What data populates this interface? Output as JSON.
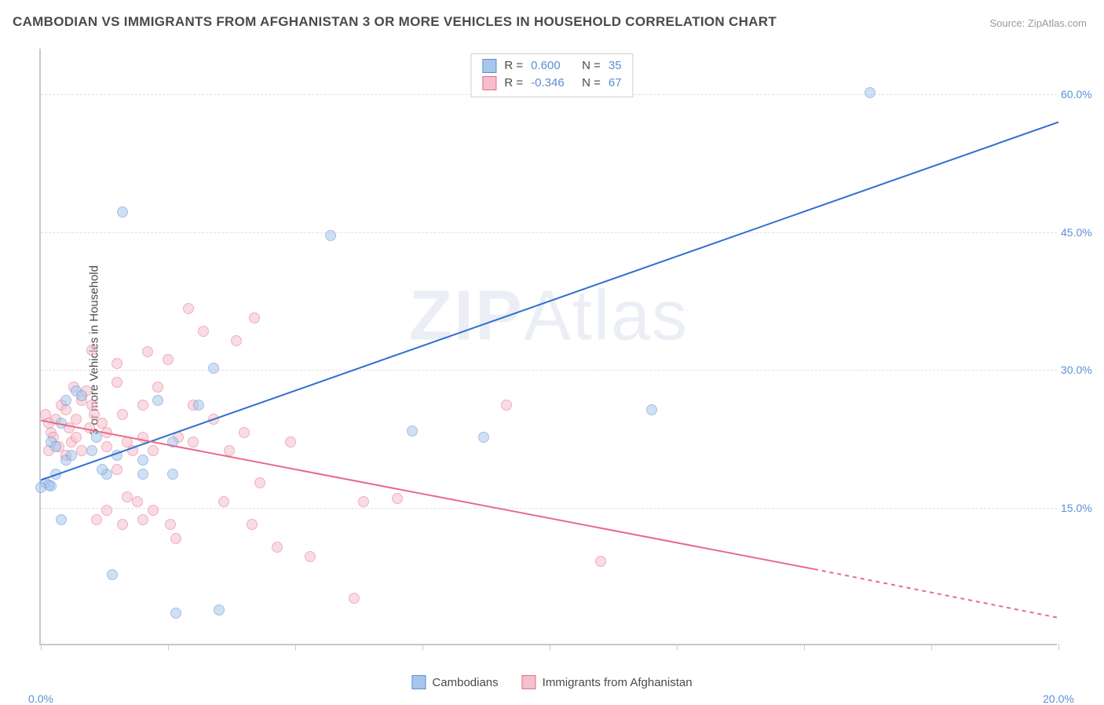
{
  "title": "CAMBODIAN VS IMMIGRANTS FROM AFGHANISTAN 3 OR MORE VEHICLES IN HOUSEHOLD CORRELATION CHART",
  "source": "Source: ZipAtlas.com",
  "ylabel": "3 or more Vehicles in Household",
  "watermark_a": "ZIP",
  "watermark_b": "Atlas",
  "chart": {
    "type": "scatter",
    "xlim": [
      0,
      20
    ],
    "ylim": [
      0,
      65
    ],
    "xticks": [
      0,
      2.5,
      5,
      7.5,
      10,
      12.5,
      15,
      17.5,
      20
    ],
    "xtick_labels": {
      "0": "0.0%",
      "20": "20.0%"
    },
    "yticks": [
      15,
      30,
      45,
      60
    ],
    "ytick_labels": [
      "15.0%",
      "30.0%",
      "45.0%",
      "60.0%"
    ],
    "grid_color": "#e0e0e0",
    "axis_color": "#c8c8c8",
    "background_color": "#ffffff",
    "marker_radius": 7,
    "marker_opacity": 0.55,
    "series": [
      {
        "name": "Cambodians",
        "color_fill": "#a8c6ec",
        "color_stroke": "#5b8fd6",
        "r_label": "R =",
        "r_value": "0.600",
        "n_label": "N =",
        "n_value": "35",
        "trend": {
          "x1": 0,
          "y1": 18.0,
          "x2": 20,
          "y2": 57.0,
          "color": "#2f6fd0",
          "width": 2
        },
        "points": [
          [
            0.1,
            17.5
          ],
          [
            0.2,
            17.2
          ],
          [
            0.15,
            17.3
          ],
          [
            0.3,
            18.5
          ],
          [
            0.2,
            22.0
          ],
          [
            0.3,
            21.5
          ],
          [
            0.5,
            20.0
          ],
          [
            0.6,
            20.5
          ],
          [
            0.7,
            27.5
          ],
          [
            0.8,
            27.0
          ],
          [
            0.4,
            24.0
          ],
          [
            0.5,
            26.5
          ],
          [
            1.0,
            21.0
          ],
          [
            1.1,
            22.5
          ],
          [
            1.3,
            18.5
          ],
          [
            1.5,
            20.5
          ],
          [
            1.2,
            19.0
          ],
          [
            0.4,
            13.5
          ],
          [
            1.4,
            7.5
          ],
          [
            2.65,
            3.3
          ],
          [
            3.5,
            3.7
          ],
          [
            1.6,
            47.0
          ],
          [
            5.7,
            44.5
          ],
          [
            2.3,
            26.5
          ],
          [
            3.1,
            26.0
          ],
          [
            3.4,
            30.0
          ],
          [
            2.0,
            20.0
          ],
          [
            2.0,
            18.5
          ],
          [
            2.6,
            22.0
          ],
          [
            2.6,
            18.5
          ],
          [
            7.3,
            23.2
          ],
          [
            8.7,
            22.5
          ],
          [
            12.0,
            25.5
          ],
          [
            16.3,
            60.0
          ],
          [
            0.0,
            17.0
          ]
        ]
      },
      {
        "name": "Immigrants from Afghanistan",
        "color_fill": "#f4c0cd",
        "color_stroke": "#e86b8a",
        "r_label": "R =",
        "r_value": "-0.346",
        "n_label": "N =",
        "n_value": "67",
        "trend": {
          "x1": 0,
          "y1": 24.5,
          "x2": 15.2,
          "y2": 8.3,
          "color": "#e86b8a",
          "width": 2,
          "dash_x1": 15.2,
          "dash_y1": 8.3,
          "dash_x2": 20,
          "dash_y2": 3.0
        },
        "points": [
          [
            0.2,
            23.0
          ],
          [
            0.3,
            24.5
          ],
          [
            0.4,
            26.0
          ],
          [
            0.5,
            25.5
          ],
          [
            0.6,
            22.0
          ],
          [
            0.7,
            22.5
          ],
          [
            0.8,
            21.0
          ],
          [
            0.65,
            28.0
          ],
          [
            0.9,
            27.5
          ],
          [
            1.0,
            26.0
          ],
          [
            1.2,
            24.0
          ],
          [
            1.3,
            23.0
          ],
          [
            1.5,
            28.5
          ],
          [
            1.6,
            25.0
          ],
          [
            1.7,
            22.0
          ],
          [
            1.8,
            21.0
          ],
          [
            2.0,
            22.5
          ],
          [
            2.2,
            21.0
          ],
          [
            2.3,
            28.0
          ],
          [
            2.5,
            31.0
          ],
          [
            2.1,
            31.8
          ],
          [
            1.0,
            32.0
          ],
          [
            1.5,
            30.5
          ],
          [
            2.7,
            22.5
          ],
          [
            3.0,
            22.0
          ],
          [
            3.0,
            26.0
          ],
          [
            3.2,
            34.0
          ],
          [
            4.2,
            35.5
          ],
          [
            3.4,
            24.5
          ],
          [
            3.85,
            33.0
          ],
          [
            2.9,
            36.5
          ],
          [
            4.3,
            17.5
          ],
          [
            3.7,
            21.0
          ],
          [
            3.6,
            15.5
          ],
          [
            4.15,
            13.0
          ],
          [
            4.65,
            10.5
          ],
          [
            4.9,
            22.0
          ],
          [
            4.0,
            23.0
          ],
          [
            5.3,
            9.5
          ],
          [
            2.65,
            11.5
          ],
          [
            2.2,
            14.5
          ],
          [
            2.55,
            13.0
          ],
          [
            1.6,
            13.0
          ],
          [
            1.3,
            14.5
          ],
          [
            1.1,
            13.5
          ],
          [
            1.7,
            16.0
          ],
          [
            1.9,
            15.5
          ],
          [
            0.1,
            25.0
          ],
          [
            0.15,
            24.0
          ],
          [
            0.25,
            22.5
          ],
          [
            0.35,
            21.5
          ],
          [
            0.15,
            21.0
          ],
          [
            6.15,
            5.0
          ],
          [
            6.35,
            15.5
          ],
          [
            7.0,
            15.8
          ],
          [
            9.15,
            26.0
          ],
          [
            0.5,
            20.5
          ],
          [
            0.55,
            23.5
          ],
          [
            0.7,
            24.5
          ],
          [
            0.8,
            26.5
          ],
          [
            0.95,
            23.5
          ],
          [
            1.05,
            25.0
          ],
          [
            1.3,
            21.5
          ],
          [
            1.5,
            19.0
          ],
          [
            11.0,
            9.0
          ],
          [
            2.0,
            26.0
          ],
          [
            2.0,
            13.5
          ]
        ]
      }
    ]
  },
  "legend_bottom": [
    {
      "label": "Cambodians",
      "fill": "#a8c6ec",
      "stroke": "#5b8fd6"
    },
    {
      "label": "Immigrants from Afghanistan",
      "fill": "#f4c0cd",
      "stroke": "#e86b8a"
    }
  ]
}
